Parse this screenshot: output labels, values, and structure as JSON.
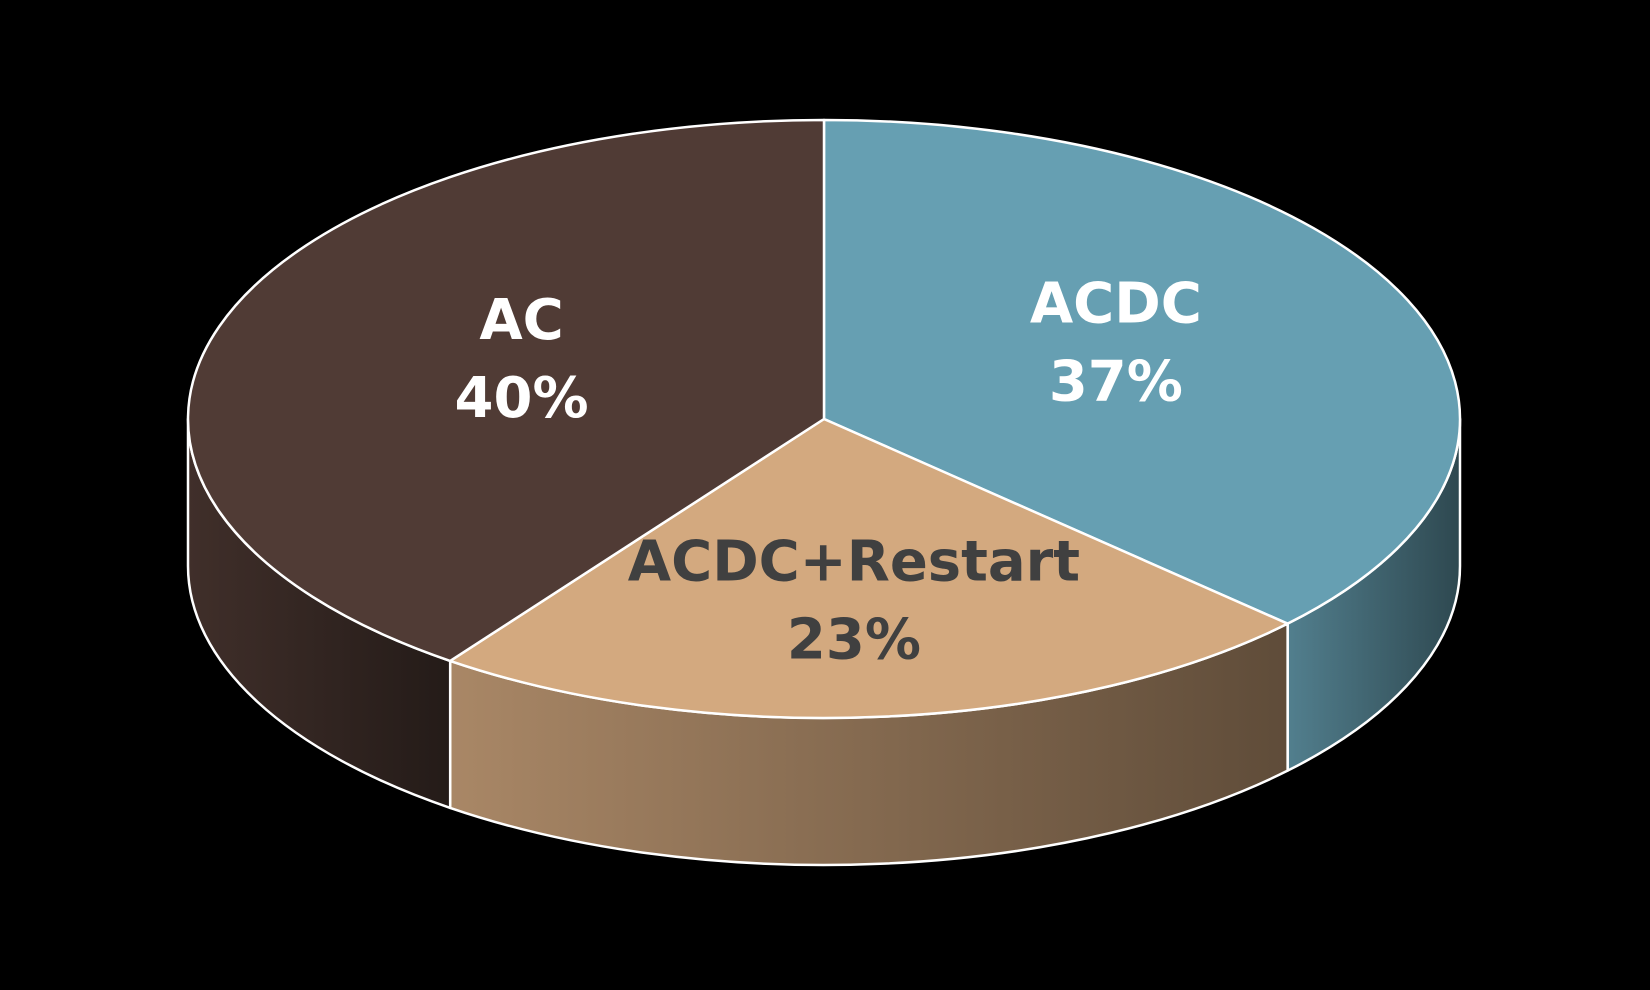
{
  "chart_data": {
    "type": "pie3d",
    "categories": [
      "ACDC",
      "ACDC+Restart",
      "AC"
    ],
    "values": [
      37,
      23,
      40
    ],
    "value_labels": [
      "37%",
      "23%",
      "40%"
    ],
    "colors": [
      "#669fb2",
      "#d3a97f",
      "#503b35"
    ],
    "label_colors": [
      "#ffffff",
      "#404040",
      "#ffffff"
    ]
  }
}
